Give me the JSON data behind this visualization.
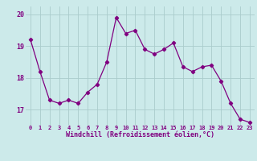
{
  "x": [
    0,
    1,
    2,
    3,
    4,
    5,
    6,
    7,
    8,
    9,
    10,
    11,
    12,
    13,
    14,
    15,
    16,
    17,
    18,
    19,
    20,
    21,
    22,
    23
  ],
  "y": [
    19.2,
    18.2,
    17.3,
    17.2,
    17.3,
    17.2,
    17.55,
    17.8,
    18.5,
    19.9,
    19.4,
    19.5,
    18.9,
    18.75,
    18.9,
    19.1,
    18.35,
    18.2,
    18.35,
    18.4,
    17.9,
    17.2,
    16.7,
    16.6
  ],
  "line_color": "#800080",
  "marker": "D",
  "marker_size": 2.2,
  "bg_color": "#cceaea",
  "grid_color": "#aacccc",
  "xlabel": "Windchill (Refroidissement éolien,°C)",
  "xlabel_color": "#800080",
  "tick_color": "#800080",
  "ylim": [
    16.5,
    20.25
  ],
  "yticks": [
    17,
    18,
    19,
    20
  ],
  "xlim": [
    -0.5,
    23.5
  ],
  "xticks": [
    0,
    1,
    2,
    3,
    4,
    5,
    6,
    7,
    8,
    9,
    10,
    11,
    12,
    13,
    14,
    15,
    16,
    17,
    18,
    19,
    20,
    21,
    22,
    23
  ],
  "xtick_labels": [
    "0",
    "1",
    "2",
    "3",
    "4",
    "5",
    "6",
    "7",
    "8",
    "9",
    "10",
    "11",
    "12",
    "13",
    "14",
    "15",
    "16",
    "17",
    "18",
    "19",
    "20",
    "21",
    "22",
    "23"
  ]
}
